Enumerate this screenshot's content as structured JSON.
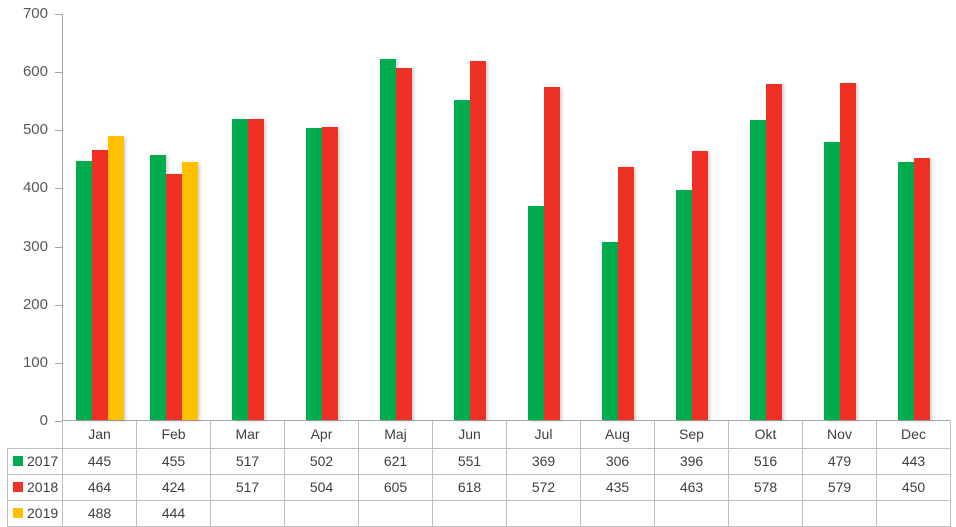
{
  "chart_data": {
    "type": "bar",
    "title": "",
    "xlabel": "",
    "ylabel": "",
    "categories": [
      "Jan",
      "Feb",
      "Mar",
      "Apr",
      "Maj",
      "Jun",
      "Jul",
      "Aug",
      "Sep",
      "Okt",
      "Nov",
      "Dec"
    ],
    "series": [
      {
        "name": "2017",
        "color": "#00AC4E",
        "values": [
          445,
          455,
          517,
          502,
          621,
          551,
          369,
          306,
          396,
          516,
          479,
          443
        ]
      },
      {
        "name": "2018",
        "color": "#EE3124",
        "values": [
          464,
          424,
          517,
          504,
          605,
          618,
          572,
          435,
          463,
          578,
          579,
          450
        ]
      },
      {
        "name": "2019",
        "color": "#FFC000",
        "values": [
          488,
          444,
          null,
          null,
          null,
          null,
          null,
          null,
          null,
          null,
          null,
          null
        ]
      }
    ],
    "ylim": [
      0,
      700
    ],
    "yticks": [
      0,
      100,
      200,
      300,
      400,
      500,
      600,
      700
    ],
    "grid": false,
    "legend_position": "data-table-left",
    "colors": {
      "axis_line": "#A6A6A6",
      "y_tick_label": "#595959",
      "table_border": "#BFBFBF",
      "table_text": "#3F3F3F",
      "background": "#FFFFFF"
    }
  }
}
